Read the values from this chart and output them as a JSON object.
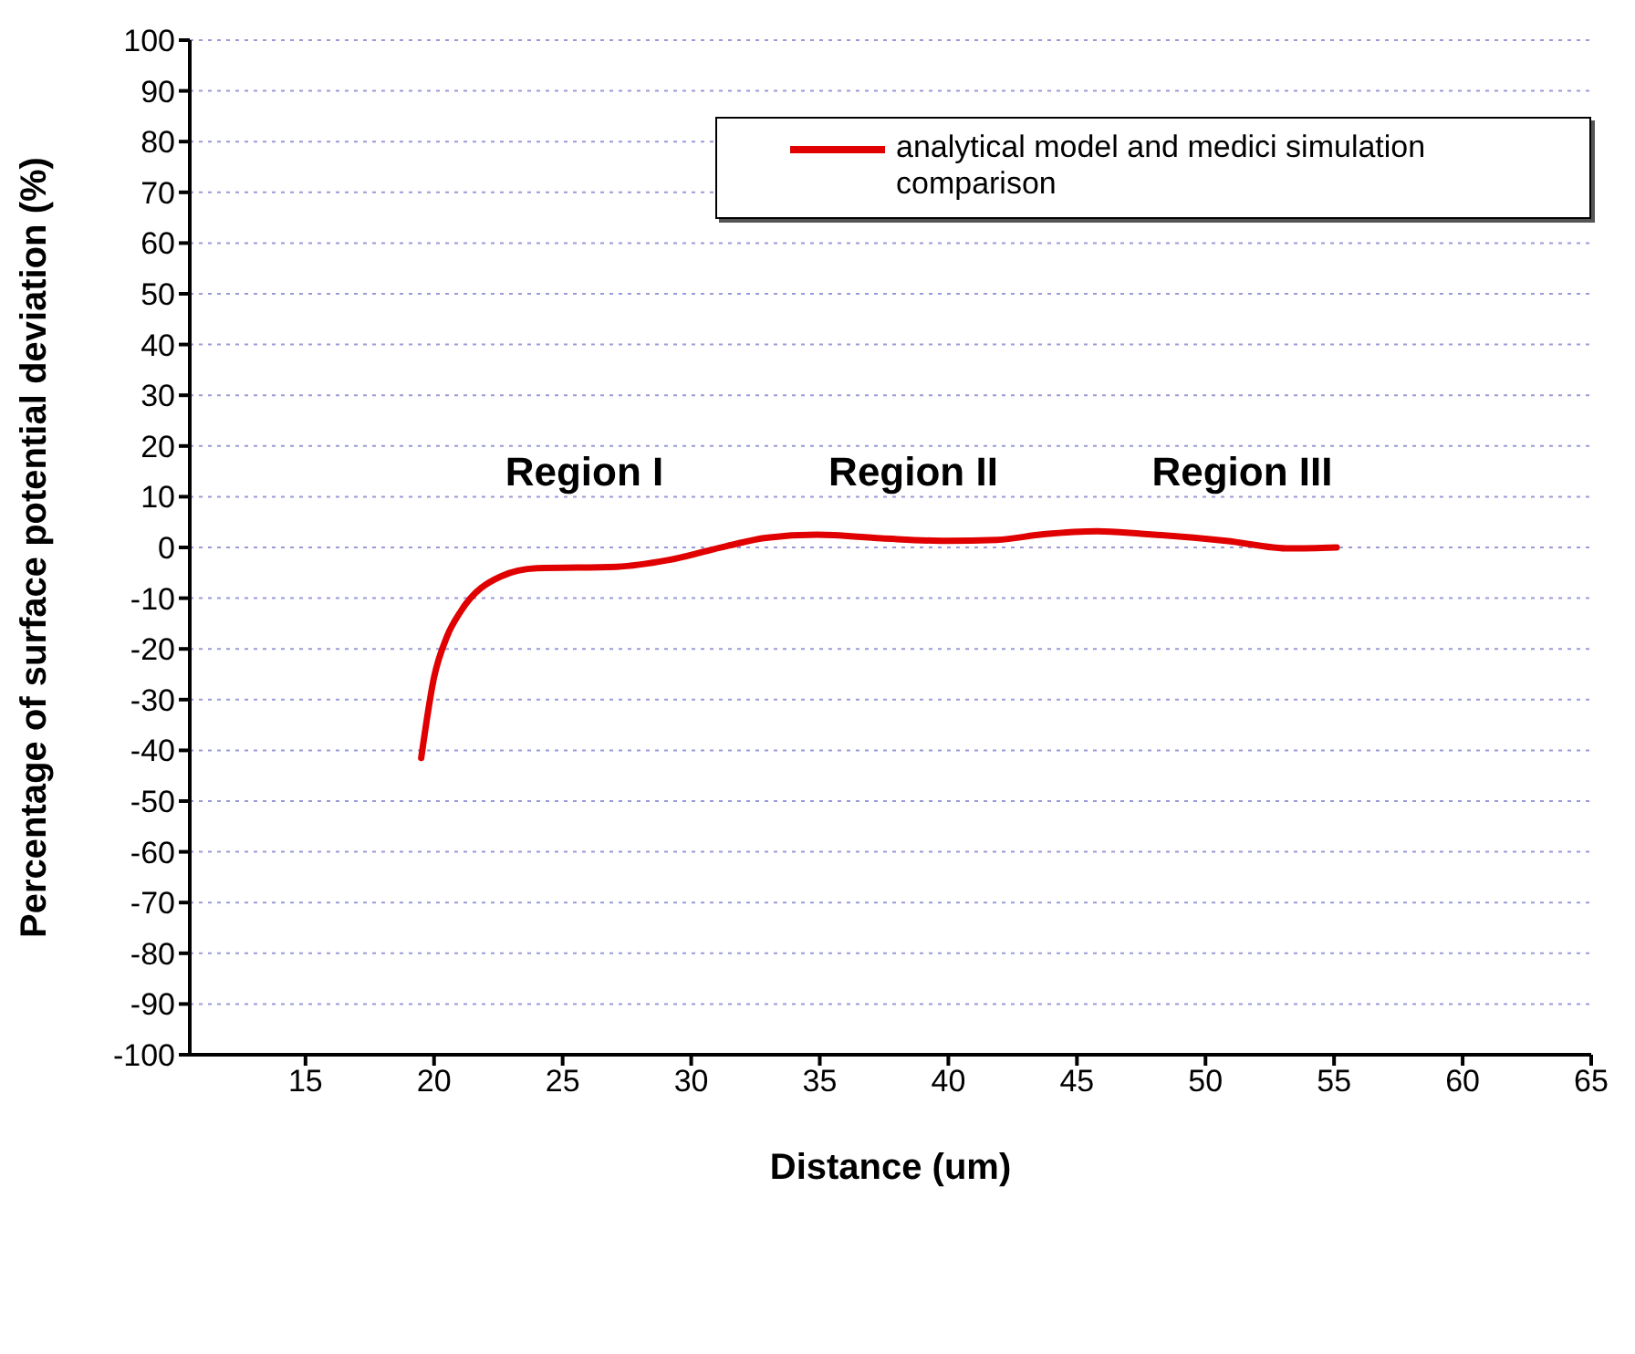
{
  "chart_data": {
    "type": "line",
    "xlabel": "Distance (um)",
    "ylabel": "Percentage of surface potential deviation (%)",
    "xlim": [
      10.5,
      65
    ],
    "xticks": [
      15,
      20,
      25,
      30,
      35,
      40,
      45,
      50,
      55,
      60,
      65
    ],
    "ylim": [
      -100,
      100
    ],
    "yticks": [
      -100,
      -90,
      -80,
      -70,
      -60,
      -50,
      -40,
      -30,
      -20,
      -10,
      0,
      10,
      20,
      30,
      40,
      50,
      60,
      70,
      80,
      90,
      100
    ],
    "grid": "y",
    "legend": "top right",
    "line_style": "solid",
    "marker": "none",
    "x": [
      19.5,
      20.0,
      20.5,
      21.05,
      22.6,
      24.0,
      27.1,
      29.1,
      31.4,
      32.9,
      34.9,
      37.4,
      39.9,
      41.9,
      43.7,
      45.8,
      47.5,
      50.8,
      53.3,
      55.1
    ],
    "series": [
      {
        "name": "analytical model and medici simulation comparison",
        "color": "#e00000",
        "values": [
          -41.5,
          -25.6,
          -17.6,
          -12.5,
          -5.7,
          -4.1,
          -3.8,
          -2.5,
          0.3,
          1.9,
          2.5,
          1.8,
          1.3,
          1.5,
          2.6,
          3.2,
          2.7,
          1.3,
          -0.2,
          0
        ]
      }
    ],
    "annotations": [
      "Region I",
      "Region II",
      "Region III"
    ]
  }
}
